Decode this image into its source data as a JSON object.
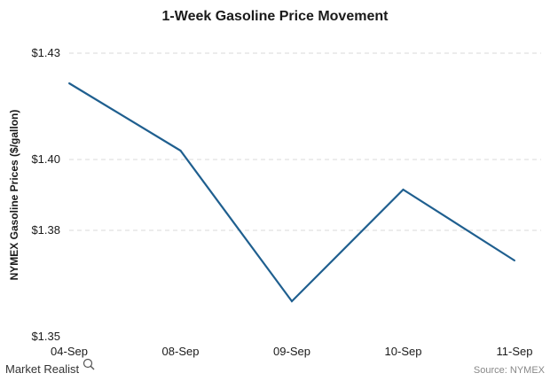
{
  "chart_data": {
    "type": "line",
    "title": "1-Week Gasoline Price Movement",
    "ylabel": "NYMEX Gasoline Prices ($/gallon)",
    "xlabel": "",
    "categories": [
      "04-Sep",
      "08-Sep",
      "09-Sep",
      "10-Sep",
      "11-Sep"
    ],
    "series": [
      {
        "values": [
          1.4215,
          1.4025,
          1.36,
          1.3915,
          1.3715
        ]
      }
    ],
    "ylim": [
      1.35,
      1.43
    ],
    "yticks": [
      1.35,
      1.38,
      1.4,
      1.43
    ],
    "ytick_labels": [
      "$1.35",
      "$1.38",
      "$1.40",
      "$1.43"
    ],
    "grid": true,
    "line_color": "#1f5f8f"
  },
  "footer": {
    "brand": "Market Realist",
    "source": "Source: NYMEX"
  },
  "colors": {
    "grid": "#d9d9d9",
    "text": "#1a1a1a"
  }
}
